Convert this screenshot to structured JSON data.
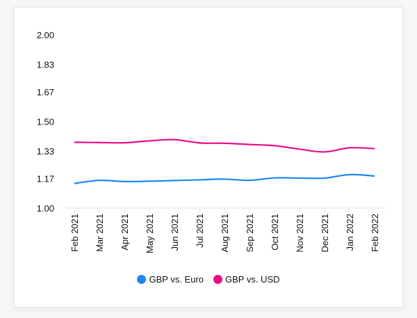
{
  "chart_data": {
    "type": "line",
    "title": "",
    "xlabel": "",
    "ylabel": "",
    "categories": [
      "Feb 2021",
      "Mar 2021",
      "Apr 2021",
      "May 2021",
      "Jun 2021",
      "Jul 2021",
      "Aug 2021",
      "Sep 2021",
      "Oct 2021",
      "Nov 2021",
      "Dec 2021",
      "Jan 2022",
      "Feb 2022"
    ],
    "yticks": [
      "1.00",
      "1.17",
      "1.33",
      "1.50",
      "1.67",
      "1.83",
      "2.00"
    ],
    "ylim": [
      1.0,
      2.0
    ],
    "grid": false,
    "legend_position": "bottom",
    "series": [
      {
        "name": "GBP vs. Euro",
        "color": "#1e88f0",
        "values": [
          1.142,
          1.16,
          1.153,
          1.155,
          1.159,
          1.163,
          1.167,
          1.16,
          1.174,
          1.173,
          1.173,
          1.193,
          1.185
        ]
      },
      {
        "name": "GBP vs. USD",
        "color": "#ec0c8c",
        "values": [
          1.38,
          1.378,
          1.377,
          1.388,
          1.395,
          1.376,
          1.374,
          1.367,
          1.36,
          1.34,
          1.324,
          1.348,
          1.343
        ]
      }
    ]
  }
}
